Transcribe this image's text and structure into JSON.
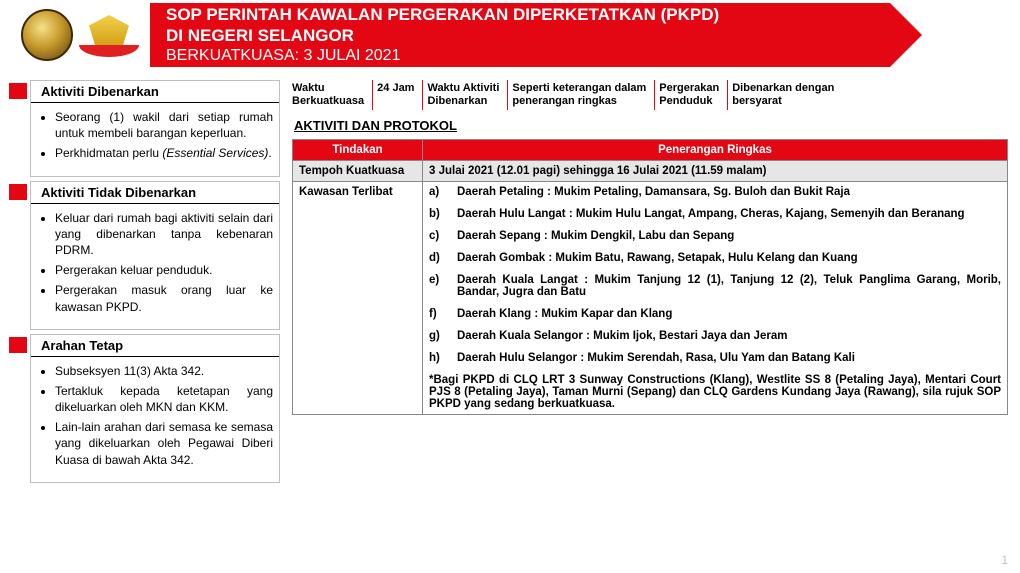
{
  "header": {
    "line1": "SOP PERINTAH KAWALAN PERGERAKAN DIPERKETATKAN (PKPD)",
    "line2": "DI NEGERI SELANGOR",
    "line3": "BERKUATKUASA: 3 JULAI 2021"
  },
  "left": {
    "allowed_title": "Aktiviti Dibenarkan",
    "allowed_items": [
      "Seorang (1) wakil dari setiap rumah untuk membeli barangan keperluan.",
      "Perkhidmatan perlu (Essential Services)."
    ],
    "notallowed_title": "Aktiviti Tidak Dibenarkan",
    "notallowed_items": [
      "Keluar dari rumah bagi aktiviti selain dari yang dibenarkan tanpa kebenaran PDRM.",
      "Pergerakan keluar penduduk.",
      "Pergerakan masuk orang luar ke kawasan PKPD."
    ],
    "arahan_title": "Arahan Tetap",
    "arahan_items": [
      "Subseksyen 11(3) Akta 342.",
      "Tertakluk kepada ketetapan yang dikeluarkan oleh MKN dan KKM.",
      "Lain-lain arahan dari semasa ke semasa yang dikeluarkan oleh Pegawai Diberi Kuasa di bawah Akta 342."
    ]
  },
  "inforow": {
    "c1a": "Waktu",
    "c1b": "Berkuatkuasa",
    "c2": "24 Jam",
    "c3a": "Waktu Aktiviti",
    "c3b": "Dibenarkan",
    "c4a": "Seperti keterangan dalam",
    "c4b": "penerangan ringkas",
    "c5a": "Pergerakan",
    "c5b": "Penduduk",
    "c6a": "Dibenarkan dengan",
    "c6b": "bersyarat"
  },
  "proto_title": "AKTIVITI DAN PROTOKOL",
  "table": {
    "h1": "Tindakan",
    "h2": "Penerangan Ringkas",
    "r1c1": "Tempoh Kuatkuasa",
    "r1c2": "3 Julai 2021 (12.01 pagi) sehingga 16 Julai 2021 (11.59 malam)",
    "r2c1": "Kawasan Terlibat",
    "areas": [
      {
        "l": "a)",
        "t": "Daerah Petaling :  Mukim Petaling, Damansara, Sg. Buloh dan Bukit Raja"
      },
      {
        "l": "b)",
        "t": "Daerah Hulu Langat : Mukim Hulu Langat, Ampang, Cheras, Kajang, Semenyih dan Beranang"
      },
      {
        "l": "c)",
        "t": "Daerah Sepang : Mukim Dengkil, Labu dan Sepang"
      },
      {
        "l": "d)",
        "t": "Daerah Gombak :  Mukim Batu, Rawang, Setapak, Hulu Kelang dan Kuang"
      },
      {
        "l": "e)",
        "t": "Daerah Kuala Langat : Mukim Tanjung 12 (1), Tanjung 12 (2), Teluk Panglima Garang, Morib, Bandar, Jugra dan Batu"
      },
      {
        "l": "f)",
        "t": "Daerah Klang :  Mukim Kapar dan Klang"
      },
      {
        "l": "g)",
        "t": "Daerah Kuala Selangor :  Mukim Ijok, Bestari Jaya dan Jeram"
      },
      {
        "l": "h)",
        "t": "Daerah Hulu Selangor : Mukim Serendah, Rasa, Ulu Yam dan Batang Kali"
      }
    ],
    "note": "*Bagi PKPD di CLQ LRT 3 Sunway Constructions (Klang), Westlite SS 8 (Petaling Jaya), Mentari Court PJS 8 (Petaling Jaya), Taman Murni (Sepang) dan CLQ Gardens Kundang Jaya (Rawang), sila rujuk SOP PKPD yang sedang berkuatkuasa."
  },
  "page_number": "1",
  "colors": {
    "brand_red": "#e30613",
    "grey_row": "#e6e6e6",
    "border": "#888888"
  }
}
